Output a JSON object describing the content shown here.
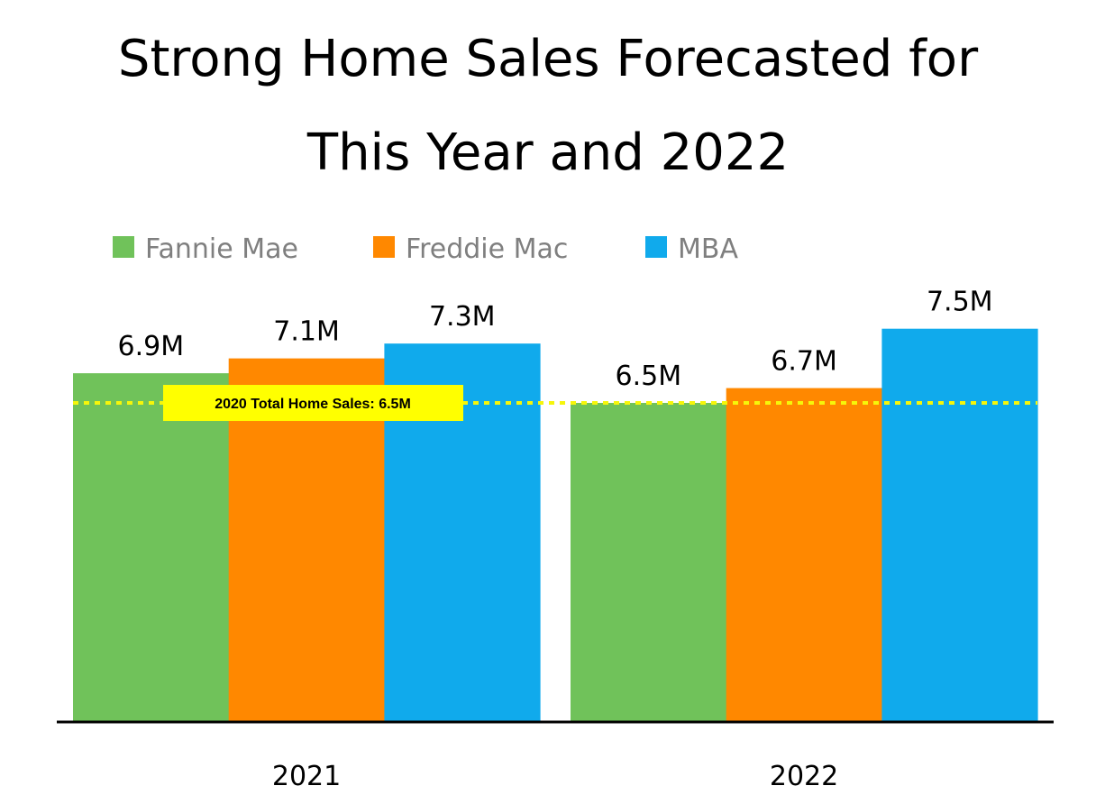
{
  "colors": {
    "fannie_mae": "#70c25a",
    "freddie_mac": "#ff8800",
    "mba": "#10aaec",
    "reference_line": "#f6f60a",
    "reference_box": "#ffff00",
    "axis": "#000000"
  },
  "chart_data": {
    "type": "bar",
    "title_lines": [
      "Strong Home Sales Forecasted for",
      "This Year and 2022"
    ],
    "categories": [
      "2021",
      "2022"
    ],
    "series": [
      {
        "name": "Fannie Mae",
        "values": [
          6.9,
          6.5
        ],
        "labels": [
          "6.9M",
          "6.5M"
        ],
        "color_key": "fannie_mae"
      },
      {
        "name": "Freddie Mac",
        "values": [
          7.1,
          6.7
        ],
        "labels": [
          "7.1M",
          "6.7M"
        ],
        "color_key": "freddie_mac"
      },
      {
        "name": "MBA",
        "values": [
          7.3,
          7.5
        ],
        "labels": [
          "7.3M",
          "7.5M"
        ],
        "color_key": "mba"
      }
    ],
    "reference_line": {
      "value": 6.5,
      "label": "2020 Total Home Sales: 6.5M",
      "style": "dotted"
    },
    "xlabel": "",
    "ylabel": "",
    "ylim": [
      2.2,
      7.8
    ],
    "grid": false,
    "legend_position": "top-left",
    "y_axis_visible": false
  }
}
